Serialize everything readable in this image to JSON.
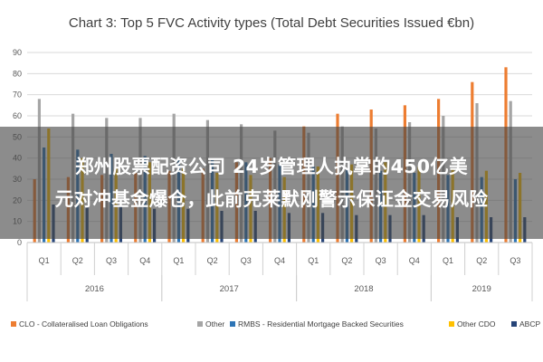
{
  "chart_data": {
    "type": "bar",
    "title": "Chart 3: Top 5 FVC Activity types (Total Debt Securities Issued €bn)",
    "xlabel": "",
    "ylabel": "",
    "ylim": [
      0,
      90
    ],
    "yticks": [
      0,
      10,
      20,
      30,
      40,
      50,
      60,
      70,
      80,
      90
    ],
    "grid": true,
    "legend_position": "bottom",
    "categories": [
      "Q1",
      "Q2",
      "Q3",
      "Q4",
      "Q1",
      "Q2",
      "Q3",
      "Q4",
      "Q1",
      "Q2",
      "Q3",
      "Q4",
      "Q1",
      "Q2",
      "Q3"
    ],
    "year_groups": [
      {
        "label": "2016",
        "start": 0,
        "count": 4
      },
      {
        "label": "2017",
        "start": 4,
        "count": 4
      },
      {
        "label": "2018",
        "start": 8,
        "count": 4
      },
      {
        "label": "2019",
        "start": 12,
        "count": 3
      }
    ],
    "series": [
      {
        "name": "CLO - Collateralised Loan Obligations",
        "color": "#ED7D31",
        "values": [
          30,
          31,
          32,
          33,
          34,
          35,
          38,
          40,
          55,
          61,
          63,
          65,
          68,
          76,
          83
        ]
      },
      {
        "name": "Other",
        "color": "#A5A5A5",
        "values": [
          68,
          61,
          59,
          59,
          61,
          58,
          56,
          53,
          52,
          55,
          54,
          57,
          60,
          66,
          67
        ]
      },
      {
        "name": "RMBS - Residential Mortgage Backed Securities",
        "color": "#2E75B6",
        "values": [
          45,
          44,
          42,
          41,
          40,
          39,
          38,
          37,
          36,
          35,
          34,
          33,
          32,
          31,
          30
        ]
      },
      {
        "name": "Other CDO",
        "color": "#FFC000",
        "values": [
          54,
          40,
          36,
          38,
          35,
          33,
          32,
          31,
          36,
          37,
          38,
          36,
          35,
          34,
          33
        ]
      },
      {
        "name": "ABCP",
        "color": "#264478",
        "values": [
          18,
          17,
          17,
          16,
          16,
          15,
          15,
          14,
          14,
          13,
          13,
          13,
          12,
          12,
          12
        ]
      }
    ]
  },
  "overlay": {
    "line1": "郑州股票配资公司 24岁管理人执掌的450亿美",
    "line2": "元对冲基金爆仓，此前克莱默刚警示保证金交易风险"
  }
}
